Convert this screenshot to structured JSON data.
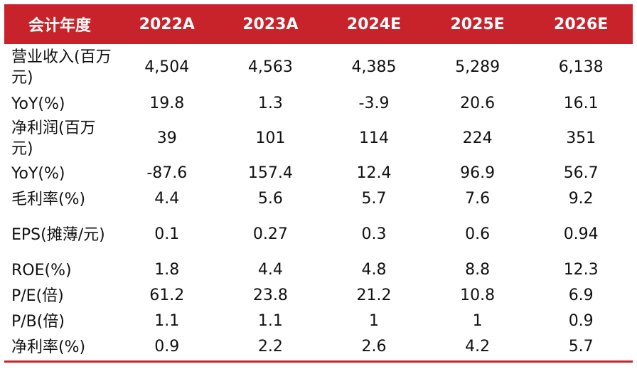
{
  "table": {
    "headers": [
      "会计年度",
      "2022A",
      "2023A",
      "2024E",
      "2025E",
      "2026E"
    ],
    "rows": [
      {
        "label": "营业收入(百万元)",
        "values": [
          "4,504",
          "4,563",
          "4,385",
          "5,289",
          "6,138"
        ]
      },
      {
        "label": "YoY(%)",
        "values": [
          "19.8",
          "1.3",
          "-3.9",
          "20.6",
          "16.1"
        ]
      },
      {
        "label": "净利润(百万元)",
        "values": [
          "39",
          "101",
          "114",
          "224",
          "351"
        ]
      },
      {
        "label": "YoY(%)",
        "values": [
          "-87.6",
          "157.4",
          "12.4",
          "96.9",
          "56.7"
        ]
      },
      {
        "label": "毛利率(%)",
        "values": [
          "4.4",
          "5.6",
          "5.7",
          "7.6",
          "9.2"
        ]
      },
      {
        "label": "EPS(摊薄/元)",
        "values": [
          "0.1",
          "0.27",
          "0.3",
          "0.6",
          "0.94"
        ]
      },
      {
        "label": "ROE(%)",
        "values": [
          "1.8",
          "4.4",
          "4.8",
          "8.8",
          "12.3"
        ]
      },
      {
        "label": "P/E(倍)",
        "values": [
          "61.2",
          "23.8",
          "21.2",
          "10.8",
          "6.9"
        ]
      },
      {
        "label": "P/B(倍)",
        "values": [
          "1.1",
          "1.1",
          "1",
          "1",
          "0.9"
        ]
      },
      {
        "label": "净利率(%)",
        "values": [
          "0.9",
          "2.2",
          "2.6",
          "4.2",
          "5.7"
        ]
      }
    ]
  },
  "colors": {
    "header_bg": "#c8232b",
    "header_text": "#ffffff",
    "body_text": "#111111"
  }
}
